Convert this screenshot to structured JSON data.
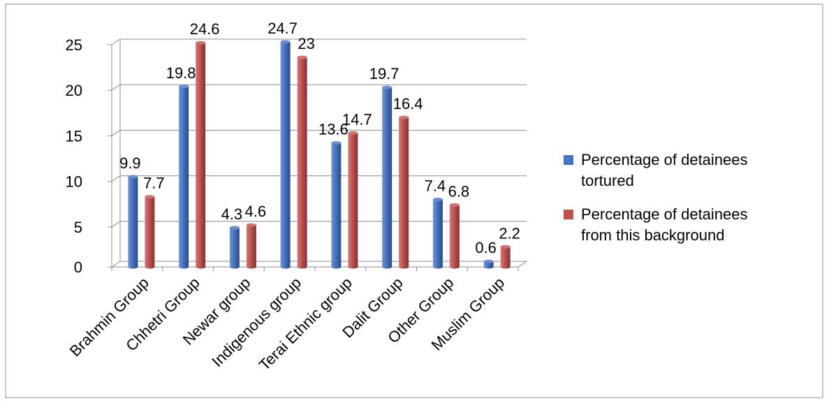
{
  "chart_data": {
    "type": "bar",
    "title": "",
    "xlabel": "",
    "ylabel": "",
    "ylim": [
      0,
      25
    ],
    "yticks": [
      0,
      5,
      10,
      15,
      20,
      25
    ],
    "grid": true,
    "legend_position": "right",
    "categories": [
      "Brahmin Group",
      "Chhetri Group",
      "Newar group",
      "Indigenous group",
      "Terai Ethnic group",
      "Dalit Group",
      "Other Group",
      "Muslim Group"
    ],
    "series": [
      {
        "name": "Percentage of detainees tortured",
        "legend_lines": [
          "Percentage of detainees",
          "tortured"
        ],
        "color": "#4472C4",
        "values": [
          9.9,
          19.8,
          4.3,
          24.7,
          13.6,
          19.7,
          7.4,
          0.6
        ],
        "labels": [
          "9.9",
          "19.8",
          "4.3",
          "24.7",
          "13.6",
          "19.7",
          "7.4",
          "0.6"
        ]
      },
      {
        "name": "Percentage of detainees from this background",
        "legend_lines": [
          "Percentage of detainees",
          "from this background"
        ],
        "color": "#C0504D",
        "values": [
          7.7,
          24.6,
          4.6,
          23,
          14.7,
          16.4,
          6.8,
          2.2
        ],
        "labels": [
          "7.7",
          "24.6",
          "4.6",
          "23",
          "14.7",
          "16.4",
          "6.8",
          "2.2"
        ]
      }
    ]
  }
}
